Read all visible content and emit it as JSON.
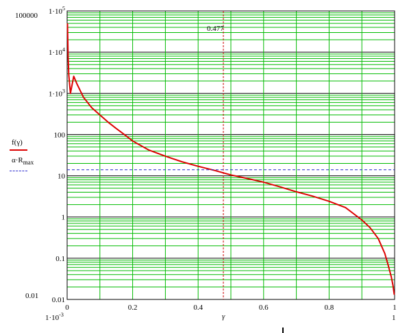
{
  "chart_data": {
    "type": "line",
    "x_label": "γ",
    "y_scale": "log",
    "x_range": [
      0.001,
      1
    ],
    "y_range": [
      0.01,
      100000
    ],
    "grid": true,
    "y_corner_labels": {
      "top": "100000",
      "bottom": "0.01"
    },
    "x_corner_labels": {
      "left": "1·10",
      "left_exp": "-3",
      "right": "1"
    },
    "x_ticks": [
      {
        "value": 0,
        "label": "0"
      },
      {
        "value": 0.2,
        "label": "0.2"
      },
      {
        "value": 0.4,
        "label": "0.4"
      },
      {
        "value": 0.6,
        "label": "0.6"
      },
      {
        "value": 0.8,
        "label": "0.8"
      },
      {
        "value": 1,
        "label": "1"
      }
    ],
    "y_ticks": [
      {
        "value": 100000,
        "base": "1·10",
        "exp": "5"
      },
      {
        "value": 10000,
        "base": "1·10",
        "exp": "4"
      },
      {
        "value": 1000,
        "base": "1·10",
        "exp": "3"
      },
      {
        "value": 100,
        "label": "100"
      },
      {
        "value": 10,
        "label": "10"
      },
      {
        "value": 1,
        "label": "1"
      },
      {
        "value": 0.1,
        "label": "0.1"
      },
      {
        "value": 0.01,
        "label": "0.01"
      }
    ],
    "series": [
      {
        "legend_parts": [
          "f(γ)"
        ],
        "color": "#dd0000",
        "style": "solid",
        "x": [
          0.001,
          0.003,
          0.005,
          0.01,
          0.02,
          0.03,
          0.05,
          0.075,
          0.1,
          0.125,
          0.15,
          0.175,
          0.2,
          0.25,
          0.3,
          0.35,
          0.4,
          0.45,
          0.5,
          0.55,
          0.6,
          0.65,
          0.7,
          0.75,
          0.8,
          0.85,
          0.9,
          0.925,
          0.95,
          0.97,
          0.98,
          0.99,
          0.995,
          0.999
        ],
        "y": [
          50000,
          8000,
          2800,
          1000,
          2600,
          1700,
          800,
          450,
          300,
          200,
          140,
          100,
          70,
          42,
          30,
          22,
          17,
          13.5,
          10.5,
          8.6,
          7,
          5.4,
          4.1,
          3.2,
          2.4,
          1.7,
          0.85,
          0.55,
          0.3,
          0.13,
          0.07,
          0.035,
          0.022,
          0.013
        ]
      },
      {
        "legend_parts": [
          "α·R",
          "max"
        ],
        "color": "#2222cc",
        "style": "dashed",
        "constant_y": 14
      }
    ],
    "marker": {
      "x": 0.477,
      "label": "0.477",
      "color": "#cc0000",
      "style": "dashed"
    }
  }
}
